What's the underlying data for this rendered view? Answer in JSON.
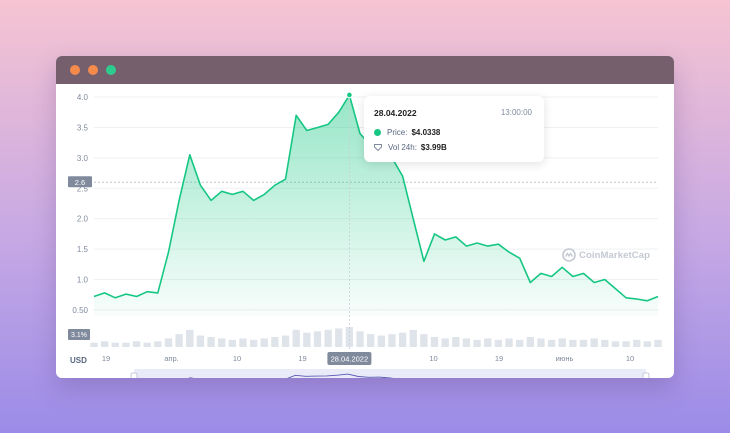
{
  "window": {
    "colors": {
      "titlebar": "#765f6d",
      "close": "#f58a4d",
      "minimize": "#f58a4d",
      "zoom": "#2ecb8f"
    }
  },
  "chart_data": {
    "type": "area",
    "currency_label": "USD",
    "y_ticks": [
      "4.0",
      "3.5",
      "3.0",
      "2.5",
      "2.0",
      "1.5",
      "1.0",
      "0.50"
    ],
    "ylim": [
      0.4,
      4.05
    ],
    "current_price_label": "2.6",
    "volume_label": "3.1%",
    "x_ticks": [
      "19",
      "апр.",
      "10",
      "19",
      "28.04.2022",
      "10",
      "19",
      "июнь",
      "10"
    ],
    "range_x_ticks": [
      "19",
      "апр.",
      "10",
      "19",
      "май",
      "10",
      "19",
      "июнь",
      "10",
      "19"
    ],
    "series": [
      {
        "name": "Price",
        "color": "#16c784",
        "x": [
          "2022-03-12",
          "2022-03-14",
          "2022-03-16",
          "2022-03-18",
          "2022-03-20",
          "2022-03-22",
          "2022-03-24",
          "2022-03-26",
          "2022-03-28",
          "2022-03-30",
          "2022-04-01",
          "2022-04-03",
          "2022-04-05",
          "2022-04-07",
          "2022-04-09",
          "2022-04-11",
          "2022-04-13",
          "2022-04-15",
          "2022-04-17",
          "2022-04-19",
          "2022-04-21",
          "2022-04-23",
          "2022-04-25",
          "2022-04-27",
          "2022-04-28",
          "2022-04-29",
          "2022-05-01",
          "2022-05-03",
          "2022-05-05",
          "2022-05-07",
          "2022-05-08",
          "2022-05-09",
          "2022-05-10",
          "2022-05-12",
          "2022-05-14",
          "2022-05-16",
          "2022-05-18",
          "2022-05-20",
          "2022-05-22",
          "2022-05-24",
          "2022-05-26",
          "2022-05-28",
          "2022-05-30",
          "2022-06-01",
          "2022-06-03",
          "2022-06-05",
          "2022-06-07",
          "2022-06-09",
          "2022-06-11",
          "2022-06-13",
          "2022-06-15",
          "2022-06-17",
          "2022-06-19",
          "2022-06-20"
        ],
        "y": [
          0.72,
          0.78,
          0.7,
          0.76,
          0.72,
          0.8,
          0.78,
          1.45,
          2.3,
          3.05,
          2.55,
          2.3,
          2.45,
          2.4,
          2.45,
          2.3,
          2.4,
          2.55,
          2.65,
          3.7,
          3.45,
          3.5,
          3.55,
          3.75,
          4.03,
          3.4,
          3.2,
          3.25,
          3.0,
          2.7,
          2.0,
          1.3,
          1.75,
          1.65,
          1.7,
          1.55,
          1.6,
          1.55,
          1.58,
          1.45,
          1.35,
          0.95,
          1.1,
          1.05,
          1.2,
          1.05,
          1.1,
          0.95,
          1.0,
          0.85,
          0.7,
          0.68,
          0.65,
          0.72
        ]
      }
    ],
    "volume": [
      3,
      4,
      3,
      3,
      4,
      3,
      4,
      6,
      9,
      12,
      8,
      7,
      6,
      5,
      6,
      5,
      6,
      7,
      8,
      12,
      10,
      11,
      12,
      13,
      14,
      11,
      9,
      8,
      9,
      10,
      12,
      9,
      7,
      6,
      7,
      6,
      5,
      6,
      5,
      6,
      5,
      7,
      6,
      5,
      6,
      5,
      5,
      6,
      5,
      4,
      4,
      5,
      4,
      5
    ],
    "range_series": [
      0.72,
      0.78,
      0.7,
      0.76,
      0.72,
      0.8,
      0.78,
      1.45,
      2.3,
      3.05,
      2.55,
      2.3,
      2.45,
      2.4,
      2.45,
      2.3,
      2.4,
      2.55,
      2.65,
      3.7,
      3.45,
      3.5,
      3.55,
      3.75,
      4.03,
      3.4,
      3.2,
      3.25,
      3.0,
      2.7,
      2.0,
      1.3,
      1.75,
      1.65,
      1.7,
      1.55,
      1.6,
      1.55,
      1.58,
      1.45,
      1.35,
      0.95,
      1.1,
      1.05,
      1.2,
      1.05,
      1.1,
      0.95,
      1.0,
      0.85,
      0.7,
      0.68,
      0.65,
      0.72
    ],
    "hover_point": {
      "date": "28.04.2022",
      "value": 4.0338
    },
    "tooltip": {
      "date": "28.04.2022",
      "time": "13:00:00",
      "price_label": "Price:",
      "price_value": "$4.0338",
      "vol_label": "Vol 24h:",
      "vol_value": "$3.99B"
    },
    "watermark": "CoinMarketCap",
    "grid": true
  }
}
